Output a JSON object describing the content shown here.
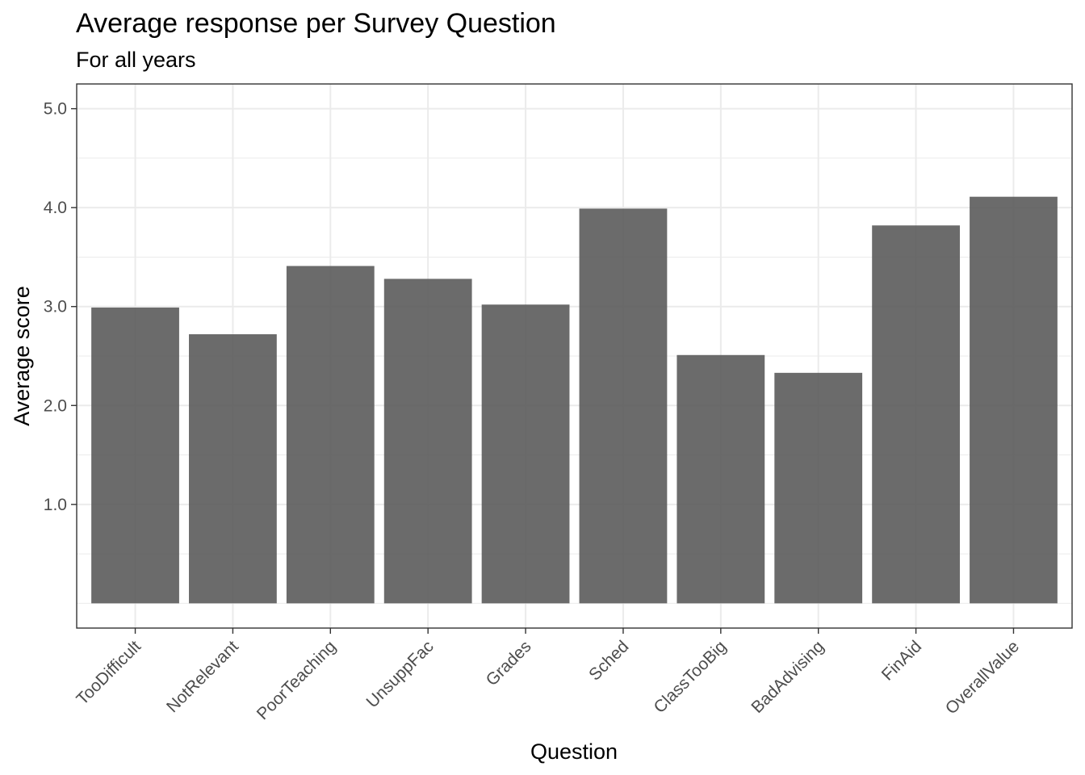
{
  "chart_data": {
    "type": "bar",
    "title": "Average response per Survey Question",
    "subtitle": "For all years",
    "xlabel": "Question",
    "ylabel": "Average score",
    "categories": [
      "TooDifficult",
      "NotRelevant",
      "PoorTeaching",
      "UnsuppFac",
      "Grades",
      "Sched",
      "ClassTooBig",
      "BadAdvising",
      "FinAid",
      "OverallValue"
    ],
    "values": [
      2.99,
      2.72,
      3.41,
      3.28,
      3.02,
      3.99,
      2.51,
      2.33,
      3.82,
      4.11
    ],
    "yticks": [
      "1.0",
      "2.0",
      "3.0",
      "4.0",
      "5.0"
    ],
    "ylim": [
      -0.25,
      5.25
    ],
    "grid": true,
    "bar_color": "#595959"
  }
}
